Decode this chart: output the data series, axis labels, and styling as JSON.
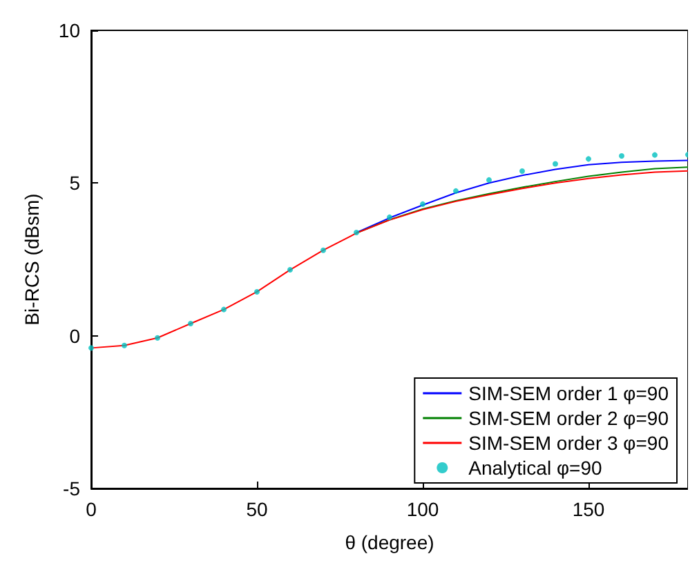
{
  "chart_data": {
    "type": "line",
    "xlabel": "θ (degree)",
    "ylabel": "Bi-RCS (dBsm)",
    "xlim": [
      0,
      180
    ],
    "xticks": [
      0,
      50,
      100,
      150
    ],
    "ylim": [
      -5,
      10
    ],
    "yticks": [
      -5,
      0,
      5,
      10
    ],
    "grid": false,
    "legend": "bottom right",
    "x": [
      0,
      10,
      20,
      30,
      40,
      50,
      60,
      70,
      80,
      90,
      100,
      110,
      120,
      130,
      140,
      150,
      160,
      170,
      180
    ],
    "series": [
      {
        "name": "SIM-SEM order 1 φ=90",
        "color": "#0000ff",
        "marker": "none",
        "values": [
          null,
          null,
          null,
          null,
          null,
          null,
          null,
          null,
          3.38,
          3.86,
          4.28,
          4.68,
          5.0,
          5.25,
          5.45,
          5.6,
          5.68,
          5.72,
          5.74
        ]
      },
      {
        "name": "SIM-SEM order 2 φ=90",
        "color": "#008000",
        "marker": "none",
        "values": [
          null,
          null,
          null,
          null,
          null,
          null,
          null,
          null,
          3.36,
          3.8,
          4.15,
          4.42,
          4.65,
          4.86,
          5.05,
          5.22,
          5.36,
          5.47,
          5.52
        ]
      },
      {
        "name": "SIM-SEM order 3 φ=90",
        "color": "#ff0000",
        "marker": "none",
        "values": [
          -0.4,
          -0.32,
          -0.07,
          0.4,
          0.86,
          1.44,
          2.16,
          2.8,
          3.36,
          3.79,
          4.13,
          4.4,
          4.62,
          4.82,
          5.0,
          5.15,
          5.27,
          5.36,
          5.4
        ]
      },
      {
        "name": "Analytical φ=90",
        "type": "scatter",
        "color": "#00bfbf",
        "marker": "circle",
        "values": [
          -0.4,
          -0.32,
          -0.07,
          0.4,
          0.86,
          1.44,
          2.16,
          2.8,
          3.38,
          3.88,
          4.31,
          4.74,
          5.1,
          5.39,
          5.63,
          5.79,
          5.89,
          5.92,
          5.93
        ]
      }
    ]
  }
}
